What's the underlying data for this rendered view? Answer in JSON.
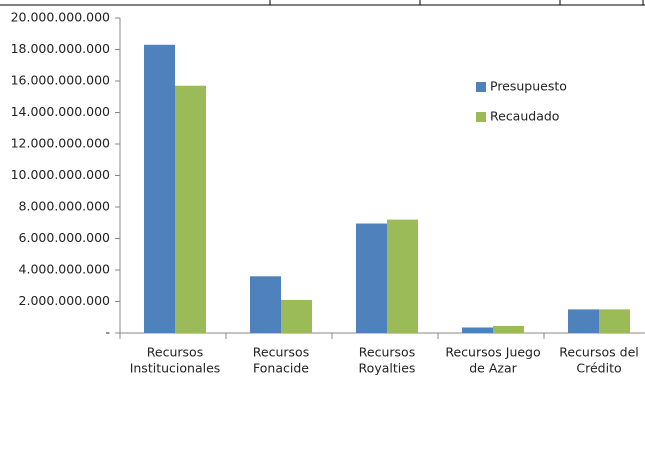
{
  "chart_data": {
    "type": "bar",
    "categories": [
      [
        "Recursos",
        "Institucionales"
      ],
      [
        "Recursos",
        "Fonacide"
      ],
      [
        "Recursos",
        "Royalties"
      ],
      [
        "Recursos Juego",
        "de Azar"
      ],
      [
        "Recursos del",
        "Crédito"
      ]
    ],
    "series": [
      {
        "name": "Presupuesto",
        "color": "#4f81bd",
        "values": [
          18300000000,
          3600000000,
          6950000000,
          350000000,
          1500000000
        ]
      },
      {
        "name": "Recaudado",
        "color": "#9bbb59",
        "values": [
          15700000000,
          2100000000,
          7200000000,
          450000000,
          1500000000
        ]
      }
    ],
    "ylim": [
      0,
      20000000000
    ],
    "yticks": [
      {
        "value": 0,
        "label": "-"
      },
      {
        "value": 2000000000,
        "label": "2.000.000.000"
      },
      {
        "value": 4000000000,
        "label": "4.000.000.000"
      },
      {
        "value": 6000000000,
        "label": "6.000.000.000"
      },
      {
        "value": 8000000000,
        "label": "8.000.000.000"
      },
      {
        "value": 10000000000,
        "label": "10.000.000.000"
      },
      {
        "value": 12000000000,
        "label": "12.000.000.000"
      },
      {
        "value": 14000000000,
        "label": "14.000.000.000"
      },
      {
        "value": 16000000000,
        "label": "16.000.000.000"
      },
      {
        "value": 18000000000,
        "label": "18.000.000.000"
      },
      {
        "value": 20000000000,
        "label": "20.000.000.000"
      }
    ],
    "legend": "right",
    "grid": false
  }
}
